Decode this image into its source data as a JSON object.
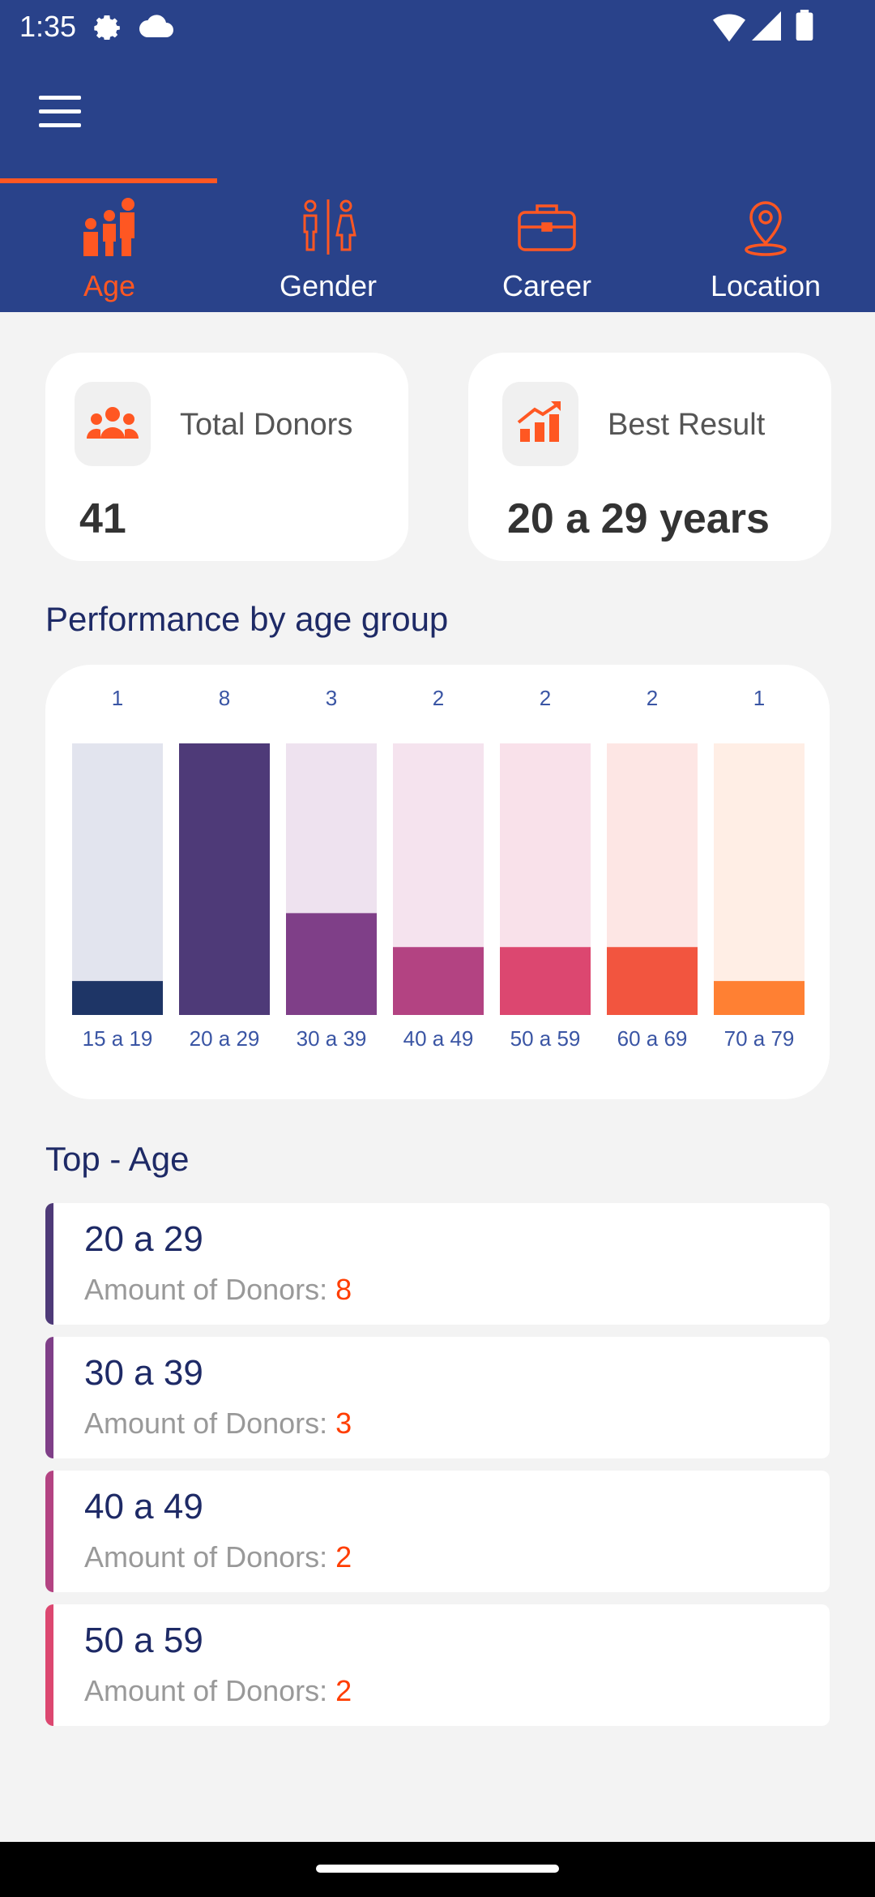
{
  "status_bar": {
    "time": "1:35",
    "icons": [
      "settings-icon",
      "cloud-icon",
      "wifi-icon",
      "signal-icon",
      "battery-icon"
    ]
  },
  "header": {
    "menu_icon": "hamburger-menu-icon",
    "background": "#29428a"
  },
  "tabs": [
    {
      "label": "Age",
      "icon": "people-age-icon",
      "active": true
    },
    {
      "label": "Gender",
      "icon": "gender-icon",
      "active": false
    },
    {
      "label": "Career",
      "icon": "briefcase-icon",
      "active": false
    },
    {
      "label": "Location",
      "icon": "location-pin-icon",
      "active": false
    }
  ],
  "summary": {
    "total_donors": {
      "label": "Total Donors",
      "value": "41",
      "icon": "group-icon"
    },
    "best_result": {
      "label": "Best Result",
      "value": "20 a 29 years",
      "icon": "trending-chart-icon"
    }
  },
  "chart_section_title": "Performance by age group",
  "chart_data": {
    "type": "bar",
    "categories": [
      "15 a 19",
      "20 a 29",
      "30 a 39",
      "40 a 49",
      "50 a 59",
      "60 a 69",
      "70 a 79"
    ],
    "values": [
      1,
      8,
      3,
      2,
      2,
      2,
      1
    ],
    "ylim": [
      0,
      8
    ],
    "colors": [
      "#1e3566",
      "#4e3a78",
      "#7f3f88",
      "#b34382",
      "#dc4770",
      "#f2553f",
      "#ff8033"
    ],
    "track_colors": [
      "#e2e4ee",
      "#e6e2ee",
      "#eee2ef",
      "#f5e3ee",
      "#f9e1ea",
      "#fde6e4",
      "#ffeee5"
    ],
    "label_color": "#3a55a4"
  },
  "top_section_title": "Top - Age",
  "top_list": [
    {
      "range": "20 a 29",
      "amount_label": "Amount of Donors:",
      "amount": "8",
      "color": "#4e3a78"
    },
    {
      "range": "30 a 39",
      "amount_label": "Amount of Donors:",
      "amount": "3",
      "color": "#7f3f88"
    },
    {
      "range": "40 a 49",
      "amount_label": "Amount of Donors:",
      "amount": "2",
      "color": "#b34382"
    },
    {
      "range": "50 a 59",
      "amount_label": "Amount of Donors:",
      "amount": "2",
      "color": "#dc4770"
    }
  ]
}
